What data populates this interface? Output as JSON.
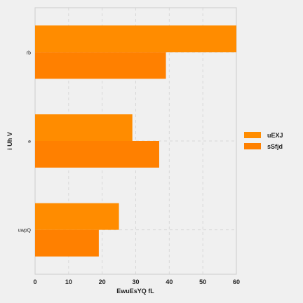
{
  "chart_data": {
    "type": "bar",
    "orientation": "horizontal",
    "categories": [
      "rb",
      "e",
      "uwpQ"
    ],
    "series": [
      {
        "name": "uEXJ",
        "values": [
          60,
          29,
          25
        ]
      },
      {
        "name": "sSfjd",
        "values": [
          39,
          37,
          19
        ]
      }
    ],
    "xlabel": "EwuEsYQ fL",
    "ylabel": "i Uh  V",
    "xlim": [
      0,
      60
    ],
    "xticks": [
      0,
      10,
      20,
      30,
      40,
      50,
      60
    ],
    "grid": true,
    "legend_position": "right"
  },
  "colors": {
    "series": [
      "#ff8c00",
      "#ff8000"
    ],
    "background": "#f0f0f0",
    "plot_background": "#f0f0f0",
    "grid": "#d8d8d8",
    "axis": "#cccccc"
  }
}
